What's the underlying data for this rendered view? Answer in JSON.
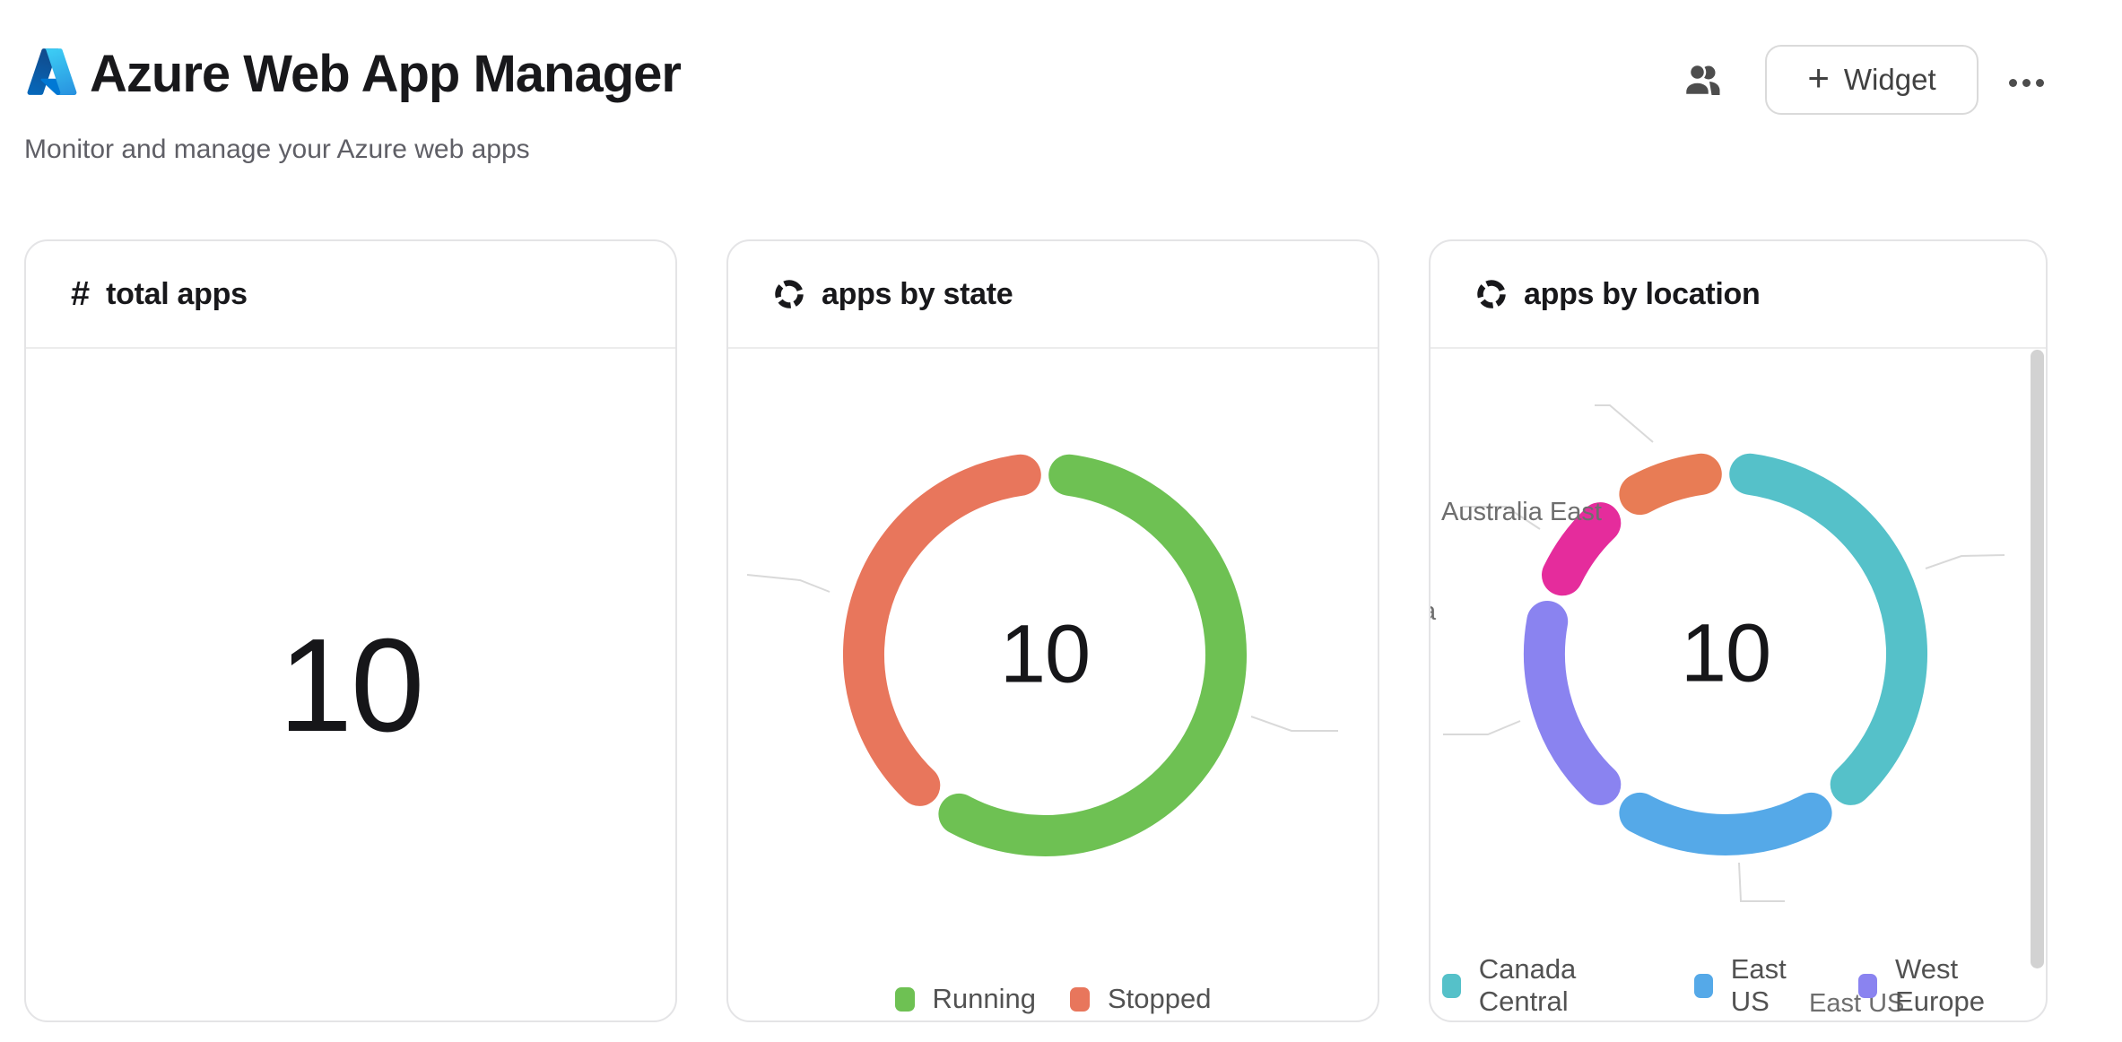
{
  "header": {
    "title": "Azure Web App Manager",
    "subtitle": "Monitor and manage your Azure web apps",
    "widget_button": {
      "plus": "+",
      "label": "Widget"
    }
  },
  "cards": {
    "total_apps": {
      "icon": "#",
      "title": "total apps",
      "value": "10"
    },
    "apps_by_state": {
      "title": "apps by state",
      "center_value": "10",
      "legend": [
        {
          "label": "Running",
          "color": "#6ec153"
        },
        {
          "label": "Stopped",
          "color": "#e8765c"
        }
      ]
    },
    "apps_by_location": {
      "title": "apps by location",
      "center_value": "10",
      "legend": [
        {
          "label": "Canada Central",
          "color": "#55c1c9"
        },
        {
          "label": "East US",
          "color": "#55a9e8"
        },
        {
          "label": "West Europe",
          "color": "#8a83f0"
        }
      ],
      "callouts": {
        "top_left": "Australia East",
        "bottom": "East US",
        "left_clipped": "a"
      }
    }
  },
  "chart_data": [
    {
      "type": "pie",
      "title": "apps by state",
      "total": 10,
      "center_label": "10",
      "legend_position": "bottom",
      "series": [
        {
          "name": "Running",
          "value": 6,
          "color": "#6ec153"
        },
        {
          "name": "Stopped",
          "value": 4,
          "color": "#e8765c"
        }
      ]
    },
    {
      "type": "pie",
      "title": "apps by location",
      "total": 10,
      "center_label": "10",
      "legend_position": "bottom",
      "series": [
        {
          "name": "Canada Central",
          "value": 4,
          "color": "#55c1c9"
        },
        {
          "name": "East US",
          "value": 2,
          "color": "#55a9e8"
        },
        {
          "name": "West Europe",
          "value": 2,
          "color": "#8a83f0"
        },
        {
          "name": "a",
          "value": 1,
          "color": "#e52c9c"
        },
        {
          "name": "Australia East",
          "value": 1,
          "color": "#e87c55"
        }
      ]
    }
  ]
}
